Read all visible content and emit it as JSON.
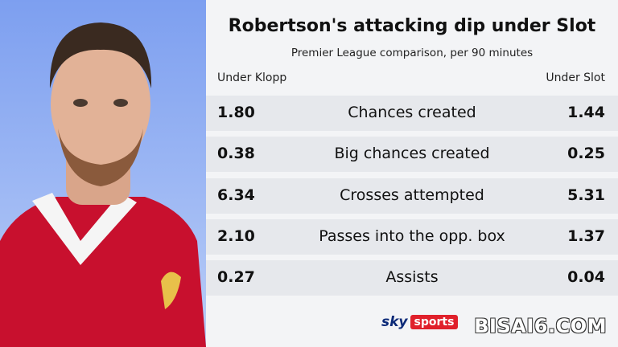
{
  "header": {
    "title": "Robertson's attacking dip under Slot",
    "subtitle": "Premier League comparison, per 90 minutes"
  },
  "table": {
    "columns": [
      "Under Klopp",
      "Under Slot"
    ],
    "rows": [
      [
        "1.80",
        "Chances created",
        "1.44"
      ],
      [
        "0.38",
        "Big chances created",
        "0.25"
      ],
      [
        "6.34",
        "Crosses attempted",
        "5.31"
      ],
      [
        "2.10",
        "Passes into the opp. box",
        "1.37"
      ],
      [
        "0.27",
        "Assists",
        "0.04"
      ]
    ]
  },
  "footer": {
    "logo": [
      "sky",
      "sports"
    ],
    "watermark": "BISAI6.COM"
  }
}
